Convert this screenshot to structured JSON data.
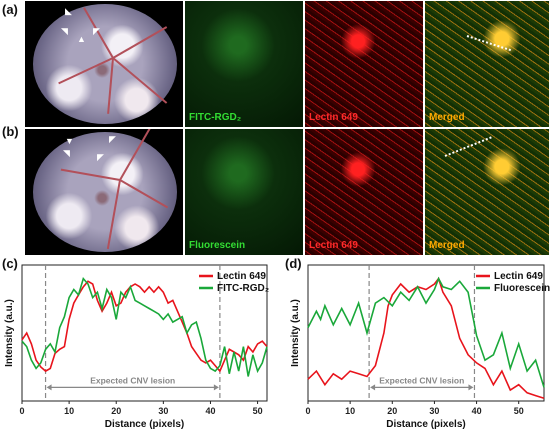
{
  "panels": {
    "a": {
      "label": "(a)",
      "images": [
        {
          "caption": "",
          "color": "#ffffff"
        },
        {
          "caption": "FITC-RGD₂",
          "color": "#33dd33"
        },
        {
          "caption": "Lectin 649",
          "color": "#ff2a2a"
        },
        {
          "caption": "Merged",
          "color": "#ffaa00"
        }
      ]
    },
    "b": {
      "label": "(b)",
      "images": [
        {
          "caption": "",
          "color": "#ffffff"
        },
        {
          "caption": "Fluorescein",
          "color": "#33dd33"
        },
        {
          "caption": "Lectin 649",
          "color": "#ff2a2a"
        },
        {
          "caption": "Merged",
          "color": "#ffaa00"
        }
      ]
    },
    "c": {
      "label": "(c)"
    },
    "d": {
      "label": "(d)"
    }
  },
  "chart_data": [
    {
      "type": "line",
      "xlabel": "Distance (pixels)",
      "ylabel": "Intensity (a.u.)",
      "xlim": [
        0,
        52
      ],
      "xticks": [
        0,
        10,
        20,
        30,
        40,
        50
      ],
      "annotation": "Expected CNV lesion",
      "lesion_range": [
        5,
        42
      ],
      "series": [
        {
          "name": "Lectin 649",
          "color": "#e8141c",
          "x": [
            0,
            1,
            2,
            3,
            4,
            5,
            6,
            7,
            8,
            9,
            10,
            11,
            12,
            13,
            14,
            15,
            16,
            17,
            18,
            19,
            20,
            21,
            22,
            23,
            24,
            25,
            26,
            27,
            28,
            29,
            30,
            31,
            32,
            33,
            34,
            35,
            36,
            37,
            38,
            39,
            40,
            41,
            42,
            43,
            44,
            45,
            46,
            47,
            48,
            49,
            50,
            51,
            52
          ],
          "y": [
            0.45,
            0.5,
            0.42,
            0.3,
            0.25,
            0.22,
            0.24,
            0.35,
            0.38,
            0.4,
            0.6,
            0.72,
            0.78,
            0.84,
            0.88,
            0.86,
            0.74,
            0.66,
            0.72,
            0.8,
            0.7,
            0.72,
            0.8,
            0.84,
            0.86,
            0.84,
            0.8,
            0.84,
            0.8,
            0.84,
            0.8,
            0.72,
            0.74,
            0.66,
            0.58,
            0.5,
            0.4,
            0.35,
            0.3,
            0.28,
            0.3,
            0.26,
            0.22,
            0.3,
            0.38,
            0.36,
            0.34,
            0.3,
            0.4,
            0.36,
            0.42,
            0.44,
            0.4
          ]
        },
        {
          "name": "FITC-RGD₂",
          "color": "#1aa83a",
          "x": [
            0,
            1,
            2,
            3,
            4,
            5,
            6,
            7,
            8,
            9,
            10,
            11,
            12,
            13,
            14,
            15,
            16,
            17,
            18,
            19,
            20,
            21,
            22,
            23,
            24,
            25,
            26,
            27,
            28,
            29,
            30,
            31,
            32,
            33,
            34,
            35,
            36,
            37,
            38,
            39,
            40,
            41,
            42,
            43,
            44,
            45,
            46,
            47,
            48,
            49,
            50,
            51,
            52
          ],
          "y": [
            0.44,
            0.4,
            0.3,
            0.24,
            0.28,
            0.38,
            0.42,
            0.36,
            0.54,
            0.62,
            0.76,
            0.82,
            0.78,
            0.9,
            0.86,
            0.76,
            0.8,
            0.68,
            0.82,
            0.76,
            0.6,
            0.8,
            0.76,
            0.84,
            0.74,
            0.72,
            0.7,
            0.68,
            0.66,
            0.64,
            0.6,
            0.64,
            0.58,
            0.6,
            0.62,
            0.5,
            0.56,
            0.58,
            0.46,
            0.3,
            0.24,
            0.22,
            0.26,
            0.4,
            0.2,
            0.36,
            0.22,
            0.4,
            0.18,
            0.34,
            0.22,
            0.28,
            0.4
          ]
        }
      ]
    },
    {
      "type": "line",
      "xlabel": "Distance (pixels)",
      "ylabel": "Intensity (a.u.)",
      "xlim": [
        0,
        56
      ],
      "xticks": [
        0,
        10,
        20,
        30,
        40,
        50
      ],
      "annotation": "Expected CNV lesion",
      "lesion_range": [
        14.5,
        39.5
      ],
      "series": [
        {
          "name": "Lectin 649",
          "color": "#e8141c",
          "x": [
            0,
            2,
            4,
            6,
            8,
            10,
            12,
            14,
            16,
            18,
            19,
            20,
            22,
            24,
            26,
            28,
            30,
            31,
            32,
            34,
            36,
            38,
            40,
            42,
            44,
            46,
            48,
            50,
            52,
            54,
            56
          ],
          "y": [
            0.16,
            0.22,
            0.12,
            0.2,
            0.16,
            0.22,
            0.2,
            0.18,
            0.26,
            0.5,
            0.7,
            0.78,
            0.86,
            0.8,
            0.84,
            0.82,
            0.86,
            0.9,
            0.8,
            0.7,
            0.46,
            0.34,
            0.28,
            0.24,
            0.12,
            0.22,
            0.08,
            0.12,
            0.06,
            0.04,
            0.02
          ]
        },
        {
          "name": "Fluorescein",
          "color": "#1aa83a",
          "x": [
            0,
            2,
            3,
            4,
            6,
            8,
            10,
            12,
            14,
            16,
            18,
            20,
            22,
            24,
            26,
            28,
            30,
            31,
            32,
            34,
            36,
            38,
            40,
            42,
            44,
            46,
            48,
            50,
            52,
            54,
            56
          ],
          "y": [
            0.54,
            0.66,
            0.6,
            0.7,
            0.56,
            0.68,
            0.56,
            0.72,
            0.5,
            0.72,
            0.76,
            0.7,
            0.8,
            0.74,
            0.84,
            0.72,
            0.82,
            0.9,
            0.84,
            0.82,
            0.88,
            0.8,
            0.48,
            0.3,
            0.34,
            0.5,
            0.24,
            0.42,
            0.22,
            0.3,
            0.1
          ]
        }
      ]
    }
  ]
}
